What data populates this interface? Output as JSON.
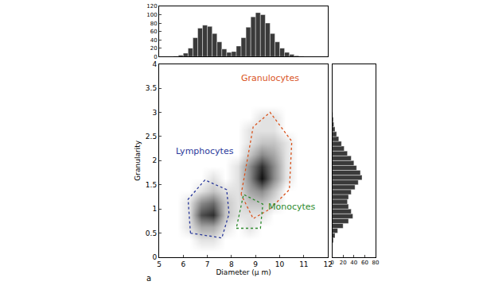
{
  "chart_data": [
    {
      "type": "heatmap",
      "xlabel": "Diameter (μ m)",
      "ylabel": "Granularity",
      "xlim": [
        5,
        12
      ],
      "xticks": [
        5,
        6,
        7,
        8,
        9,
        10,
        11,
        12
      ],
      "ylim": [
        0,
        4
      ],
      "yticks": [
        0,
        0.5,
        1,
        1.5,
        2,
        2.5,
        3,
        3.5,
        4
      ],
      "grid": false,
      "panel_label": "a",
      "cells": {
        "x": [
          5.25,
          5.75,
          6.25,
          6.75,
          7.25,
          7.75,
          8.25,
          8.75,
          9.25,
          9.75,
          10.25,
          10.75,
          11.25,
          11.75
        ],
        "y": [
          0.125,
          0.375,
          0.625,
          0.875,
          1.125,
          1.375,
          1.625,
          1.875,
          2.125,
          2.375,
          2.625,
          2.875,
          3.125,
          3.375,
          3.625,
          3.875
        ],
        "z": [
          [
            0,
            0,
            0,
            0,
            0,
            0,
            0,
            0,
            0,
            0,
            0,
            0,
            0,
            0
          ],
          [
            0,
            0,
            0,
            1,
            1,
            0,
            0,
            0,
            0,
            0,
            0,
            0,
            0,
            0
          ],
          [
            0,
            0,
            1,
            3,
            3,
            1,
            0,
            1,
            0,
            0,
            0,
            0,
            0,
            0
          ],
          [
            0,
            0,
            1,
            6,
            7,
            2,
            1,
            1,
            1,
            0,
            0,
            0,
            0,
            0
          ],
          [
            0,
            0,
            1,
            4,
            5,
            2,
            1,
            2,
            2,
            1,
            0,
            0,
            0,
            0
          ],
          [
            0,
            0,
            0,
            1,
            2,
            1,
            1,
            3,
            4,
            2,
            0,
            0,
            0,
            0
          ],
          [
            0,
            0,
            0,
            0,
            1,
            0,
            1,
            4,
            8,
            4,
            1,
            0,
            0,
            0
          ],
          [
            0,
            0,
            0,
            0,
            0,
            0,
            1,
            4,
            7,
            4,
            1,
            0,
            0,
            0
          ],
          [
            0,
            0,
            0,
            0,
            0,
            0,
            0,
            2,
            4,
            3,
            1,
            0,
            0,
            0
          ],
          [
            0,
            0,
            0,
            0,
            0,
            0,
            0,
            1,
            2,
            2,
            1,
            0,
            0,
            0
          ],
          [
            0,
            0,
            0,
            0,
            0,
            0,
            0,
            1,
            1,
            1,
            0,
            0,
            0,
            0
          ],
          [
            0,
            0,
            0,
            0,
            0,
            0,
            0,
            0,
            1,
            1,
            0,
            0,
            0,
            0
          ],
          [
            0,
            0,
            0,
            0,
            0,
            0,
            0,
            0,
            0,
            0,
            0,
            0,
            0,
            0
          ],
          [
            0,
            0,
            0,
            0,
            0,
            0,
            0,
            0,
            0,
            0,
            0,
            0,
            0,
            0
          ],
          [
            0,
            0,
            0,
            0,
            0,
            0,
            0,
            0,
            0,
            0,
            0,
            0,
            0,
            0
          ],
          [
            0,
            0,
            0,
            0,
            0,
            0,
            0,
            0,
            0,
            0,
            0,
            0,
            0,
            0
          ]
        ]
      },
      "regions": [
        {
          "name": "Lymphocytes",
          "color": "#2b3a9b",
          "line_style": "dot",
          "label_at": [
            6.9,
            2.2
          ],
          "vertices": [
            [
              6.3,
              0.5
            ],
            [
              7.6,
              0.4
            ],
            [
              7.9,
              0.9
            ],
            [
              7.8,
              1.4
            ],
            [
              6.9,
              1.6
            ],
            [
              6.2,
              1.2
            ]
          ]
        },
        {
          "name": "Granulocytes",
          "color": "#d9541e",
          "line_style": "dot",
          "label_at": [
            9.6,
            3.7
          ],
          "vertices": [
            [
              8.4,
              1.3
            ],
            [
              8.9,
              2.7
            ],
            [
              9.6,
              3.0
            ],
            [
              10.5,
              2.4
            ],
            [
              10.4,
              1.4
            ],
            [
              9.6,
              1.0
            ],
            [
              8.9,
              0.8
            ]
          ]
        },
        {
          "name": "Monocytes",
          "color": "#2e8b2e",
          "line_style": "dot",
          "label_at": [
            10.5,
            1.05
          ],
          "vertices": [
            [
              8.2,
              0.6
            ],
            [
              9.2,
              0.6
            ],
            [
              9.3,
              1.1
            ],
            [
              8.5,
              1.3
            ]
          ]
        }
      ]
    },
    {
      "type": "histogram",
      "color": "#3a3a3a",
      "tick_labels": "y",
      "xlim": [
        5,
        12
      ],
      "ylim": [
        0,
        120
      ],
      "yticks": [
        0,
        20,
        40,
        60,
        80,
        100,
        120
      ],
      "bins": [
        5,
        5.2,
        5.4,
        5.6,
        5.8,
        6,
        6.2,
        6.4,
        6.6,
        6.8,
        7,
        7.2,
        7.4,
        7.6,
        7.8,
        8,
        8.2,
        8.4,
        8.6,
        8.8,
        9,
        9.2,
        9.4,
        9.6,
        9.8,
        10,
        10.2,
        10.4,
        10.6,
        10.8,
        11,
        11.2,
        11.4,
        11.6,
        11.8,
        12
      ],
      "counts": [
        0,
        0,
        0,
        1,
        3,
        8,
        20,
        45,
        68,
        75,
        72,
        55,
        35,
        18,
        10,
        12,
        25,
        45,
        70,
        95,
        105,
        100,
        80,
        55,
        35,
        20,
        10,
        5,
        2,
        1,
        0,
        0,
        0,
        0,
        0
      ]
    },
    {
      "type": "histogram",
      "orientation": "horizontal",
      "color": "#3a3a3a",
      "tick_labels": "x",
      "xlim": [
        0,
        80
      ],
      "xticks": [
        0,
        20,
        40,
        60,
        80
      ],
      "ylim": [
        0,
        4
      ],
      "bins": [
        0,
        0.1,
        0.2,
        0.3,
        0.4,
        0.5,
        0.6,
        0.7,
        0.8,
        0.9,
        1,
        1.1,
        1.2,
        1.3,
        1.4,
        1.5,
        1.6,
        1.7,
        1.8,
        1.9,
        2,
        2.1,
        2.2,
        2.3,
        2.4,
        2.5,
        2.6,
        2.7,
        2.8,
        2.9,
        3,
        3.1,
        3.2,
        3.3,
        3.4,
        3.5,
        3.6,
        3.7,
        3.8,
        3.9,
        4
      ],
      "counts": [
        0,
        0,
        0,
        2,
        5,
        10,
        20,
        30,
        38,
        35,
        30,
        28,
        30,
        35,
        42,
        48,
        55,
        52,
        45,
        40,
        35,
        28,
        22,
        17,
        12,
        8,
        5,
        3,
        2,
        1,
        0,
        0,
        0,
        0,
        0,
        0,
        0,
        0,
        0,
        0
      ]
    }
  ]
}
